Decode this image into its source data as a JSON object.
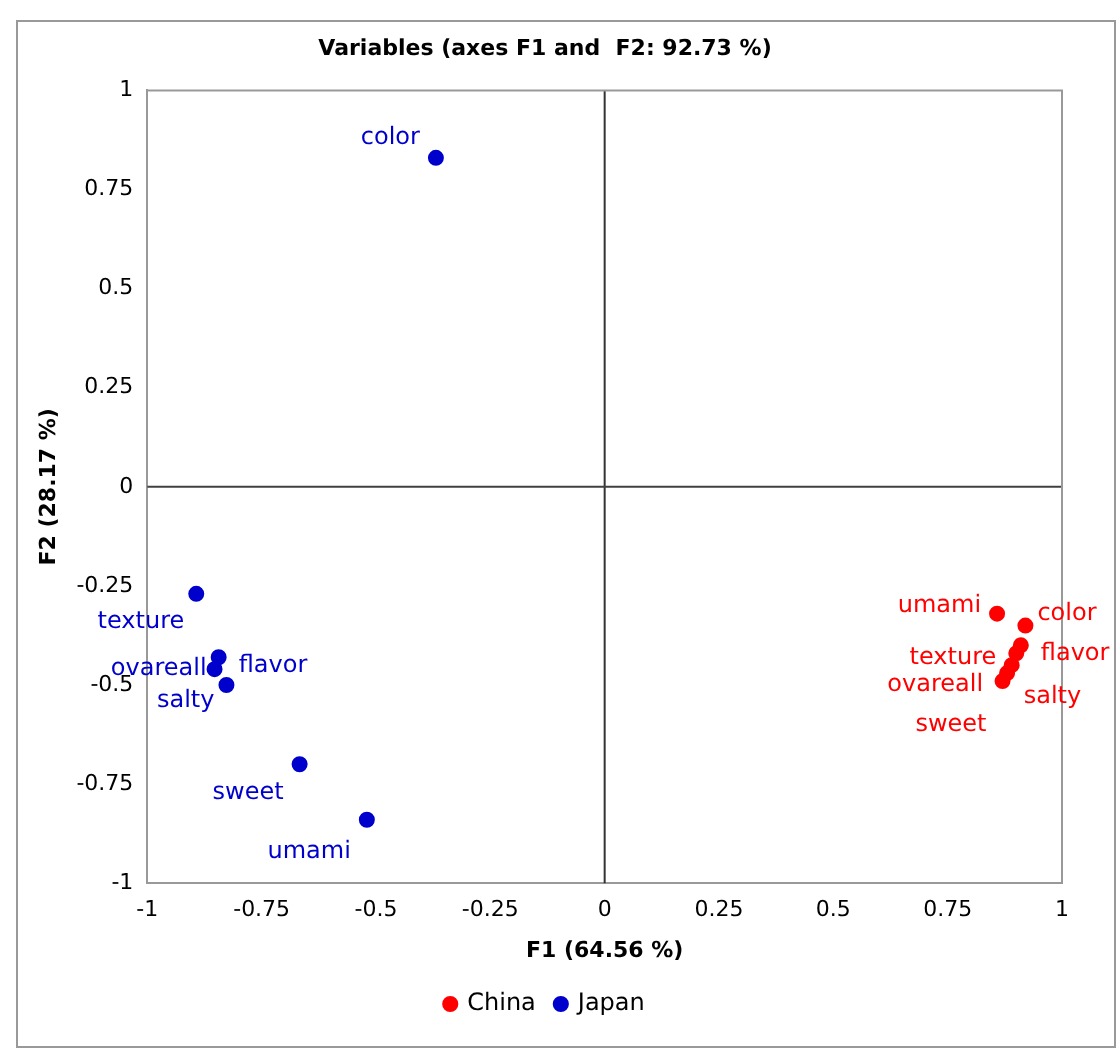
{
  "chart_data": {
    "type": "scatter",
    "title": "Variables (axes F1 and  F2: 92.73 %)",
    "xlabel": "F1 (64.56 %)",
    "ylabel": "F2 (28.17 %)",
    "series": [
      {
        "name": "China",
        "color": "#ff0000",
        "x": [
          0.858,
          0.92,
          0.91,
          0.9,
          0.89,
          0.88,
          0.87
        ],
        "values": [
          -0.32,
          -0.35,
          -0.4,
          -0.42,
          -0.45,
          -0.47,
          -0.49
        ]
      },
      {
        "name": "Japan",
        "color": "#0000cc",
        "x": [
          -0.369,
          -0.893,
          -0.844,
          -0.853,
          -0.827,
          -0.667,
          -0.52
        ],
        "values": [
          0.83,
          -0.27,
          -0.43,
          -0.46,
          -0.5,
          -0.7,
          -0.84
        ]
      }
    ],
    "annotations": [
      {
        "text": "umami",
        "x": 0.858,
        "y": -0.32
      },
      {
        "text": "color",
        "x": 0.92,
        "y": -0.35
      },
      {
        "text": "flavor",
        "x": 0.91,
        "y": -0.4
      },
      {
        "text": "texture",
        "x": 0.9,
        "y": -0.42
      },
      {
        "text": "salty",
        "x": 0.89,
        "y": -0.45
      },
      {
        "text": "ovareall",
        "x": 0.88,
        "y": -0.47
      },
      {
        "text": "sweet",
        "x": 0.87,
        "y": -0.49
      },
      {
        "text": "color",
        "x": -0.369,
        "y": 0.83
      },
      {
        "text": "texture",
        "x": -0.893,
        "y": -0.27
      },
      {
        "text": "flavor",
        "x": -0.844,
        "y": -0.43
      },
      {
        "text": "ovareall",
        "x": -0.853,
        "y": -0.46
      },
      {
        "text": "salty",
        "x": -0.827,
        "y": -0.5
      },
      {
        "text": "sweet",
        "x": -0.667,
        "y": -0.7
      },
      {
        "text": "umami",
        "x": -0.52,
        "y": -0.84
      }
    ],
    "ref_lines": [
      {
        "axis": "x",
        "value": 0,
        "color": "#333333"
      },
      {
        "axis": "y",
        "value": 0,
        "color": "#404040"
      }
    ],
    "xlim": [
      -1,
      1
    ],
    "xticks": [
      -1,
      -0.75,
      -0.5,
      -0.25,
      0,
      0.25,
      0.5,
      0.75,
      1
    ],
    "ylim": [
      -1,
      1
    ],
    "yticks": [
      -1,
      -0.75,
      -0.5,
      -0.25,
      0,
      0.25,
      0.5,
      0.75,
      1
    ],
    "grid": false,
    "legend": "bottom",
    "marker": "circle"
  }
}
